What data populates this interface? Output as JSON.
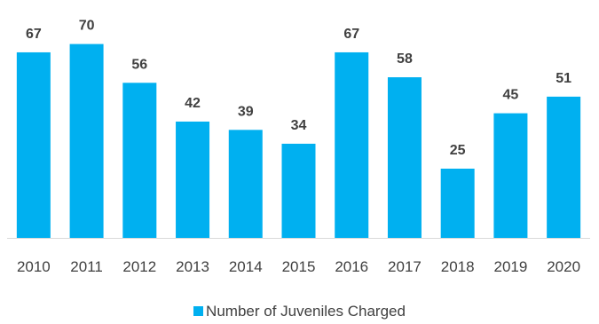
{
  "chart_data": {
    "type": "bar",
    "categories": [
      "2010",
      "2011",
      "2012",
      "2013",
      "2014",
      "2015",
      "2016",
      "2017",
      "2018",
      "2019",
      "2020"
    ],
    "series": [
      {
        "name": "Number of Juveniles Charged",
        "values": [
          67,
          70,
          56,
          42,
          39,
          34,
          67,
          58,
          25,
          45,
          51
        ],
        "color": "#00B0F0"
      }
    ],
    "title": "",
    "xlabel": "",
    "ylabel": "",
    "ylim": [
      0,
      70
    ],
    "grid": false,
    "data_labels": true,
    "legend_position": "bottom",
    "axis_color": "#D9D9D9",
    "text_color": "#404040"
  }
}
